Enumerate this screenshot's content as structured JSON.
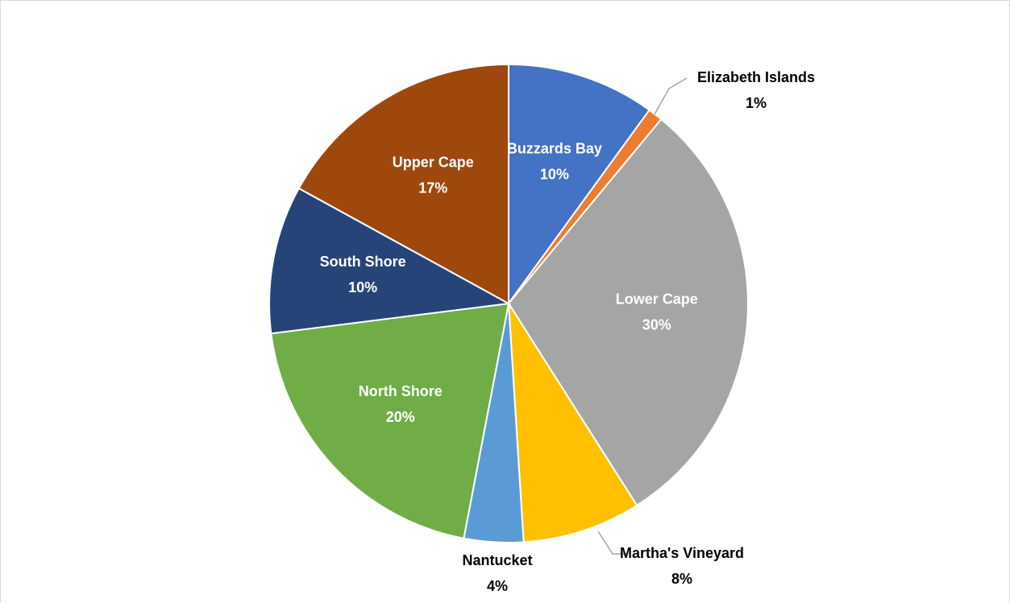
{
  "chart_data": {
    "type": "pie",
    "categories": [
      "Buzzards Bay",
      "Elizabeth Islands",
      "Lower Cape",
      "Martha's Vineyard",
      "Nantucket",
      "North Shore",
      "South Shore",
      "Upper Cape"
    ],
    "values": [
      10,
      1,
      30,
      8,
      4,
      20,
      10,
      17
    ],
    "value_labels": [
      "10%",
      "1%",
      "30%",
      "8%",
      "4%",
      "20%",
      "10%",
      "17%"
    ],
    "colors": [
      "#4472c4",
      "#ed7d31",
      "#a5a5a5",
      "#ffc000",
      "#5b9bd5",
      "#70ad47",
      "#264478",
      "#9e480e"
    ]
  }
}
